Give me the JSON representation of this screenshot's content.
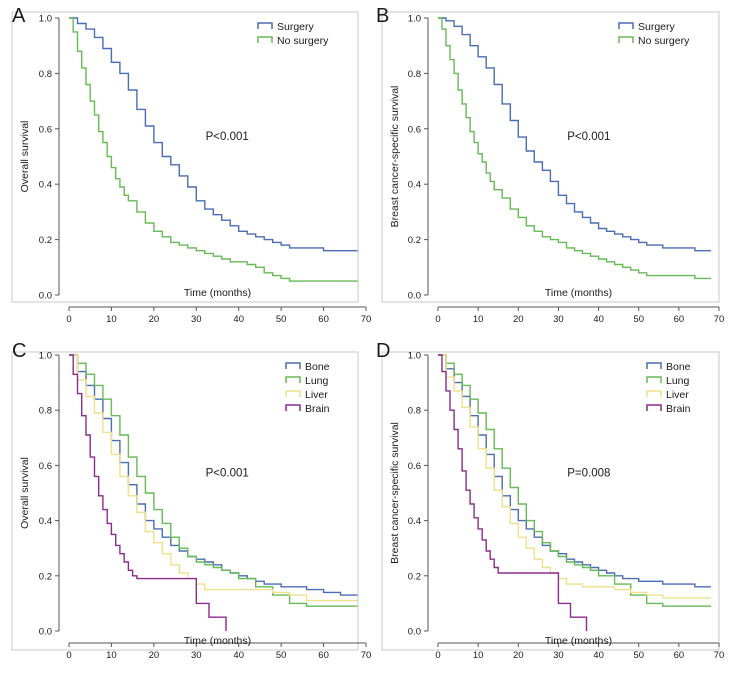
{
  "chart_data": [
    {
      "panel": "A",
      "type": "line",
      "xlabel": "Time (months)",
      "ylabel": "Overall survival",
      "xlim": [
        0,
        70
      ],
      "ylim": [
        0.0,
        1.0
      ],
      "xticks": [
        0,
        10,
        20,
        30,
        40,
        50,
        60,
        70
      ],
      "yticks": [
        "0.0",
        "0.2",
        "0.4",
        "0.6",
        "0.8",
        "1.0"
      ],
      "annotation": "P<0.001",
      "series": [
        {
          "name": "Surgery",
          "color": "#4a6db3",
          "x": [
            0,
            2,
            4,
            6,
            8,
            10,
            12,
            14,
            16,
            18,
            20,
            22,
            24,
            26,
            28,
            30,
            32,
            34,
            36,
            38,
            40,
            42,
            44,
            46,
            48,
            50,
            52,
            56,
            60,
            64,
            68
          ],
          "y": [
            1.0,
            0.98,
            0.96,
            0.93,
            0.89,
            0.84,
            0.8,
            0.74,
            0.67,
            0.61,
            0.55,
            0.5,
            0.47,
            0.43,
            0.39,
            0.34,
            0.31,
            0.29,
            0.27,
            0.25,
            0.23,
            0.22,
            0.21,
            0.2,
            0.19,
            0.18,
            0.17,
            0.17,
            0.16,
            0.16,
            0.16
          ]
        },
        {
          "name": "No surgery",
          "color": "#66bb55",
          "x": [
            0,
            1,
            2,
            3,
            4,
            5,
            6,
            7,
            8,
            9,
            10,
            11,
            12,
            13,
            14,
            16,
            18,
            20,
            22,
            24,
            26,
            28,
            30,
            32,
            34,
            36,
            38,
            40,
            42,
            44,
            46,
            48,
            50,
            52,
            56,
            60,
            64,
            68
          ],
          "y": [
            1.0,
            0.95,
            0.88,
            0.82,
            0.76,
            0.7,
            0.65,
            0.59,
            0.55,
            0.5,
            0.46,
            0.42,
            0.39,
            0.36,
            0.34,
            0.3,
            0.26,
            0.23,
            0.21,
            0.19,
            0.18,
            0.17,
            0.16,
            0.15,
            0.14,
            0.13,
            0.12,
            0.12,
            0.11,
            0.1,
            0.08,
            0.07,
            0.06,
            0.05,
            0.05,
            0.05,
            0.05,
            0.05
          ]
        }
      ]
    },
    {
      "panel": "B",
      "type": "line",
      "xlabel": "Time (months)",
      "ylabel": "Breast cancer-specific survival",
      "xlim": [
        0,
        70
      ],
      "ylim": [
        0.0,
        1.0
      ],
      "xticks": [
        0,
        10,
        20,
        30,
        40,
        50,
        60,
        70
      ],
      "yticks": [
        "0.0",
        "0.2",
        "0.4",
        "0.6",
        "0.8",
        "1.0"
      ],
      "annotation": "P<0.001",
      "series": [
        {
          "name": "Surgery",
          "color": "#4a6db3",
          "x": [
            0,
            2,
            4,
            6,
            8,
            10,
            12,
            14,
            16,
            18,
            20,
            22,
            24,
            26,
            28,
            30,
            32,
            34,
            36,
            38,
            40,
            42,
            44,
            46,
            48,
            50,
            52,
            56,
            60,
            64,
            68
          ],
          "y": [
            1.0,
            0.99,
            0.97,
            0.94,
            0.9,
            0.86,
            0.82,
            0.76,
            0.69,
            0.63,
            0.57,
            0.52,
            0.48,
            0.45,
            0.41,
            0.36,
            0.33,
            0.3,
            0.28,
            0.26,
            0.24,
            0.23,
            0.22,
            0.21,
            0.2,
            0.19,
            0.18,
            0.17,
            0.17,
            0.16,
            0.16
          ]
        },
        {
          "name": "No surgery",
          "color": "#66bb55",
          "x": [
            0,
            1,
            2,
            3,
            4,
            5,
            6,
            7,
            8,
            9,
            10,
            11,
            12,
            13,
            14,
            16,
            18,
            20,
            22,
            24,
            26,
            28,
            30,
            32,
            34,
            36,
            38,
            40,
            42,
            44,
            46,
            48,
            50,
            52,
            56,
            60,
            64,
            68
          ],
          "y": [
            1.0,
            0.96,
            0.9,
            0.85,
            0.8,
            0.74,
            0.69,
            0.64,
            0.59,
            0.55,
            0.51,
            0.48,
            0.44,
            0.41,
            0.38,
            0.35,
            0.31,
            0.28,
            0.25,
            0.23,
            0.21,
            0.2,
            0.19,
            0.17,
            0.16,
            0.15,
            0.14,
            0.13,
            0.12,
            0.11,
            0.1,
            0.09,
            0.08,
            0.07,
            0.07,
            0.07,
            0.06,
            0.06
          ]
        }
      ]
    },
    {
      "panel": "C",
      "type": "line",
      "xlabel": "Time (months)",
      "ylabel": "Overall survival",
      "xlim": [
        0,
        70
      ],
      "ylim": [
        0.0,
        1.0
      ],
      "xticks": [
        0,
        10,
        20,
        30,
        40,
        50,
        60,
        70
      ],
      "yticks": [
        "0.0",
        "0.2",
        "0.4",
        "0.6",
        "0.8",
        "1.0"
      ],
      "annotation": "P<0.001",
      "series": [
        {
          "name": "Bone",
          "color": "#4a6db3",
          "x": [
            0,
            2,
            4,
            6,
            8,
            10,
            12,
            14,
            16,
            18,
            20,
            22,
            24,
            26,
            28,
            30,
            32,
            34,
            36,
            38,
            40,
            42,
            44,
            46,
            50,
            56,
            60,
            64,
            68
          ],
          "y": [
            1.0,
            0.94,
            0.89,
            0.84,
            0.77,
            0.69,
            0.61,
            0.53,
            0.46,
            0.4,
            0.37,
            0.34,
            0.31,
            0.29,
            0.27,
            0.26,
            0.25,
            0.24,
            0.22,
            0.21,
            0.2,
            0.19,
            0.18,
            0.17,
            0.16,
            0.15,
            0.14,
            0.13,
            0.13
          ]
        },
        {
          "name": "Lung",
          "color": "#66bb55",
          "x": [
            0,
            2,
            4,
            6,
            8,
            10,
            12,
            14,
            16,
            18,
            20,
            22,
            24,
            26,
            28,
            30,
            32,
            34,
            36,
            38,
            40,
            44,
            48,
            52,
            56,
            60,
            64,
            68
          ],
          "y": [
            1.0,
            0.97,
            0.93,
            0.89,
            0.84,
            0.78,
            0.71,
            0.63,
            0.56,
            0.5,
            0.44,
            0.39,
            0.34,
            0.3,
            0.27,
            0.25,
            0.24,
            0.23,
            0.22,
            0.21,
            0.19,
            0.16,
            0.13,
            0.1,
            0.09,
            0.09,
            0.09,
            0.09
          ]
        },
        {
          "name": "Liver",
          "color": "#f0e08a",
          "x": [
            0,
            2,
            4,
            6,
            8,
            10,
            12,
            14,
            16,
            18,
            20,
            22,
            24,
            26,
            28,
            30,
            32,
            36,
            40,
            44,
            48,
            52,
            56,
            60,
            64,
            68
          ],
          "y": [
            1.0,
            0.91,
            0.85,
            0.79,
            0.72,
            0.64,
            0.56,
            0.49,
            0.43,
            0.36,
            0.32,
            0.28,
            0.24,
            0.21,
            0.19,
            0.17,
            0.15,
            0.15,
            0.15,
            0.15,
            0.14,
            0.13,
            0.11,
            0.11,
            0.11,
            0.11
          ]
        },
        {
          "name": "Brain",
          "color": "#8b2b8f",
          "x": [
            0,
            1,
            2,
            3,
            4,
            5,
            6,
            7,
            8,
            9,
            10,
            11,
            12,
            13,
            14,
            15,
            16,
            18,
            20,
            22,
            24,
            26,
            28,
            29,
            30,
            33,
            35,
            37
          ],
          "y": [
            1.0,
            0.93,
            0.86,
            0.78,
            0.71,
            0.63,
            0.56,
            0.49,
            0.44,
            0.39,
            0.35,
            0.31,
            0.28,
            0.25,
            0.22,
            0.2,
            0.19,
            0.19,
            0.19,
            0.19,
            0.19,
            0.19,
            0.19,
            0.19,
            0.1,
            0.05,
            0.05,
            0.0
          ]
        }
      ]
    },
    {
      "panel": "D",
      "type": "line",
      "xlabel": "Time (months)",
      "ylabel": "Breast cancer-specific survival",
      "xlim": [
        0,
        70
      ],
      "ylim": [
        0.0,
        1.0
      ],
      "xticks": [
        0,
        10,
        20,
        30,
        40,
        50,
        60,
        70
      ],
      "yticks": [
        "0.0",
        "0.2",
        "0.4",
        "0.6",
        "0.8",
        "1.0"
      ],
      "annotation": "P=0.008",
      "series": [
        {
          "name": "Bone",
          "color": "#4a6db3",
          "x": [
            0,
            2,
            4,
            6,
            8,
            10,
            12,
            14,
            16,
            18,
            20,
            22,
            24,
            26,
            28,
            30,
            32,
            34,
            36,
            38,
            40,
            42,
            44,
            46,
            50,
            56,
            60,
            64,
            68
          ],
          "y": [
            1.0,
            0.95,
            0.9,
            0.85,
            0.78,
            0.71,
            0.64,
            0.56,
            0.49,
            0.44,
            0.4,
            0.37,
            0.34,
            0.31,
            0.29,
            0.28,
            0.26,
            0.25,
            0.24,
            0.23,
            0.22,
            0.21,
            0.2,
            0.19,
            0.18,
            0.17,
            0.17,
            0.16,
            0.16
          ]
        },
        {
          "name": "Lung",
          "color": "#66bb55",
          "x": [
            0,
            2,
            4,
            6,
            8,
            10,
            12,
            14,
            16,
            18,
            20,
            22,
            24,
            26,
            28,
            30,
            32,
            34,
            36,
            38,
            40,
            44,
            48,
            52,
            56,
            60,
            64,
            68
          ],
          "y": [
            1.0,
            0.97,
            0.93,
            0.89,
            0.84,
            0.79,
            0.73,
            0.66,
            0.59,
            0.52,
            0.46,
            0.4,
            0.36,
            0.32,
            0.29,
            0.27,
            0.25,
            0.24,
            0.23,
            0.22,
            0.2,
            0.17,
            0.13,
            0.1,
            0.09,
            0.09,
            0.09,
            0.09
          ]
        },
        {
          "name": "Liver",
          "color": "#f0e08a",
          "x": [
            0,
            2,
            4,
            6,
            8,
            10,
            12,
            14,
            16,
            18,
            20,
            22,
            24,
            26,
            28,
            30,
            32,
            36,
            40,
            44,
            48,
            52,
            56,
            60,
            64,
            68
          ],
          "y": [
            1.0,
            0.92,
            0.87,
            0.81,
            0.74,
            0.66,
            0.59,
            0.51,
            0.45,
            0.39,
            0.34,
            0.3,
            0.26,
            0.23,
            0.21,
            0.19,
            0.17,
            0.16,
            0.16,
            0.15,
            0.14,
            0.13,
            0.12,
            0.12,
            0.12,
            0.12
          ]
        },
        {
          "name": "Brain",
          "color": "#8b2b8f",
          "x": [
            0,
            1,
            2,
            3,
            4,
            5,
            6,
            7,
            8,
            9,
            10,
            11,
            12,
            13,
            14,
            15,
            16,
            18,
            20,
            22,
            24,
            26,
            28,
            29,
            30,
            33,
            35,
            37
          ],
          "y": [
            1.0,
            0.94,
            0.87,
            0.8,
            0.73,
            0.66,
            0.58,
            0.51,
            0.46,
            0.41,
            0.37,
            0.33,
            0.29,
            0.26,
            0.23,
            0.21,
            0.21,
            0.21,
            0.21,
            0.21,
            0.21,
            0.21,
            0.21,
            0.21,
            0.1,
            0.05,
            0.05,
            0.0
          ]
        }
      ]
    }
  ]
}
